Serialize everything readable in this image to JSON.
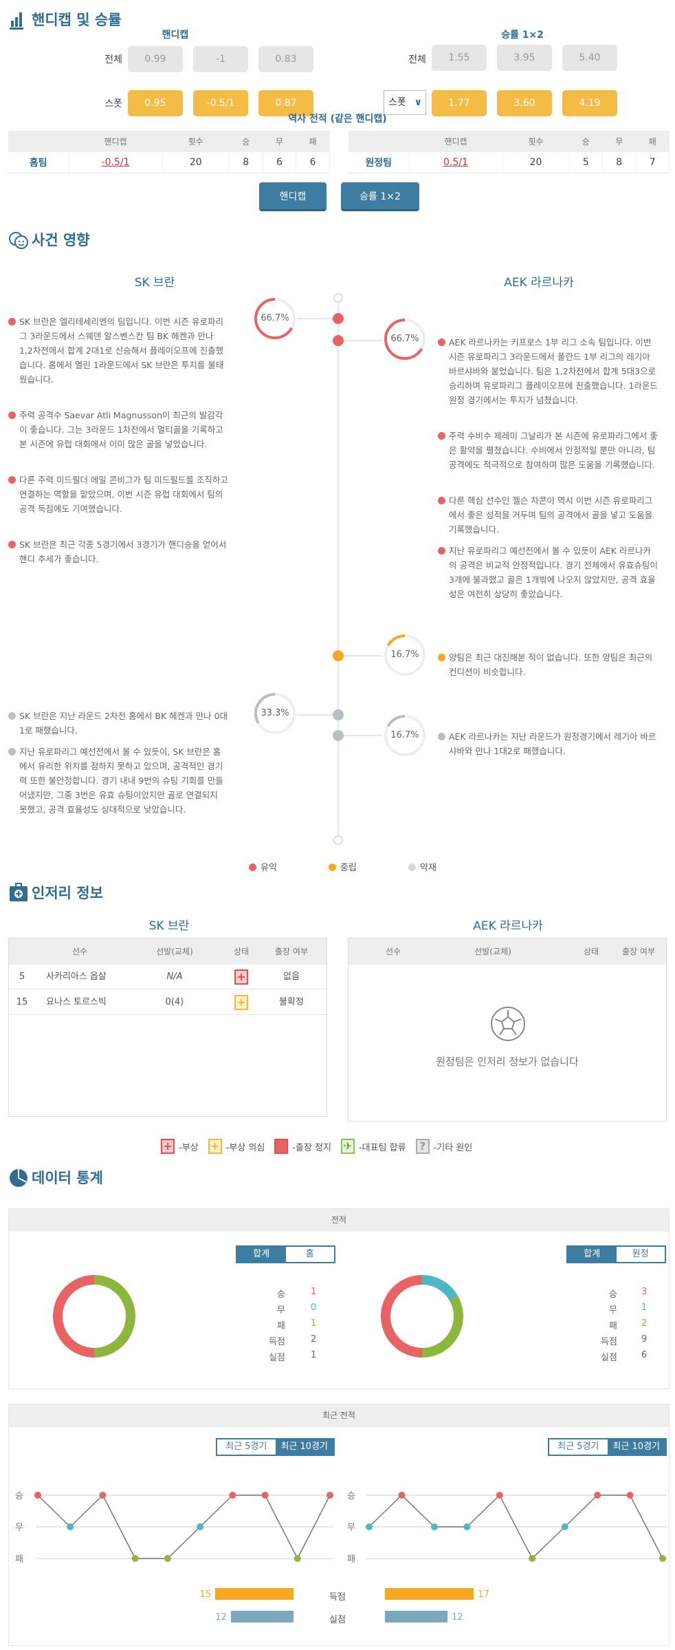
{
  "colors": {
    "primary": "#3e7da2",
    "title": "#2f6d93",
    "positive": "#e86464",
    "neutral": "#f7a823",
    "negative": "#b7c0c1",
    "win": "#e86464",
    "draw": "#4bb8c4",
    "loss": "#8db63c",
    "goals": "#f7a823",
    "conceded": "#7ba7bf",
    "orange_box": "#f5bc45"
  },
  "odds": {
    "title": "핸디캡 및 승률",
    "handicap_header": "핸디캡",
    "winrate_header": "승률 1×2",
    "row_all": "전체",
    "row_spot": "스폿",
    "handicap_all": [
      "0.99",
      "-1",
      "0.83"
    ],
    "handicap_spot": [
      "0.95",
      "-0.5/1",
      "0.87"
    ],
    "winrate_all": [
      "1.55",
      "3.95",
      "5.40"
    ],
    "winrate_select": "스폿",
    "winrate_spot": [
      "1.77",
      "3.60",
      "4.19"
    ],
    "history_title": "역사 전적 (같은 핸디캡)",
    "history_columns": [
      "",
      "핸디캡",
      "횟수",
      "승",
      "무",
      "패"
    ],
    "home_row": [
      "홈팀",
      "-0.5/1",
      "20",
      "8",
      "6",
      "6"
    ],
    "away_row": [
      "원정팀",
      "0.5/1",
      "20",
      "5",
      "8",
      "7"
    ],
    "btn_handicap": "핸디캡",
    "btn_winrate": "승률 1×2"
  },
  "impact": {
    "title": "사건 영향",
    "home_team": "SK 브란",
    "away_team": "AEK 라르나카",
    "groups": [
      {
        "side": "left",
        "type": "positive",
        "percent": "66.7%",
        "value": 66.7,
        "items": [
          "SK 브란은 엘리테세리엔의 팀입니다. 이번 시즌 유로파리그 3라운드에서 스웨덴 알스벤스칸 팀 BK 헤켄과 만나 1,2차전에서 합계 2대1로 신승해서 플레이오프에 진출했습니다. 홈에서 열린 1라운드에서 SK 브란은 투지를 불태웠습니다.",
          "주력 공격수 Saevar Atli Magnusson이 최근의 발감각이 좋습니다. 그는 3라운드 1차전에서 멀티골을 기록하고 본 시즌에 유럽 대회에서 이미 많은 골을 넣었습니다.",
          "다른 주력 미드필더 에밀 콘비그가 팀 미드필드를 조직하고 연결하는 역할을 맡았으며, 이번 시즌 유럽 대회에서 팀의 공격 득점에도 기여했습니다.",
          "SK 브란은 최근 각종 5경기에서 3경기가 핸디승을 얻어서 핸디 추세가 좋습니다."
        ]
      },
      {
        "side": "right",
        "type": "positive",
        "percent": "66.7%",
        "value": 66.7,
        "items": [
          "AEK 라르나카는 키프로스 1부 리그 소속 팀입니다. 이번 시즌 유로파리그 3라운드에서 폴란드 1부 리그의 레기아 바르샤바와 붙었습니다. 팀은 1,2차전에서 합계 5대3으로 승리하며 유로파리그 플레이오프에 진출했습니다. 1라운드 원정 경기에서는 투지가 넘쳤습니다.",
          "주력 수비수 제레미 그날리가 본 시즌에 유로파리그에서 좋은 활약을 펼쳤습니다. 수비에서 안정적일 뿐만 아니라, 팀 공격에도 적극적으로 참여하며 많은 도움을 기록했습니다.",
          "다른 핵심 선수인 젤슨 차콘이 역시 이번 시즌 유로파리그에서 좋은 성적을 거두며 팀의 공격에서 골을 넣고 도움을 기록했습니다.",
          "지난 유로파리그 예선전에서 볼 수 있듯이 AEK 라르나카의 공격은 비교적 안정적입니다. 경기 전체에서 유효슈팅이 3개에 불과했고 골은 1개밖에 나오지 않았지만, 공격 효율성은 여전히 상당히 좋았습니다."
        ]
      },
      {
        "side": "right",
        "type": "neutral",
        "percent": "16.7%",
        "value": 16.7,
        "items": [
          "양팀은 최근 대진해본 적이 없습니다. 또한 양팀은 최근의 컨디션이 비슷합니다."
        ]
      },
      {
        "side": "left",
        "type": "negative",
        "percent": "33.3%",
        "value": 33.3,
        "items": [
          "SK 브란은 지난 라운드 2차전 홈에서 BK 헤켄과 만나 0대1로 패했습니다.",
          "지난 유로파리그 예선전에서 볼 수 있듯이, SK 브란은 홈에서 유리한 위치를 점하지 못하고 있으며, 공격적인 경기력 또한 불안정합니다. 경기 내내 9번의 슈팅 기회를 만들어냈지만, 그중 3번은 유효 슈팅이었지만 골로 연결되지 못했고, 공격 효율성도 상대적으로 낮았습니다."
        ]
      },
      {
        "side": "right",
        "type": "negative",
        "percent": "16.7%",
        "value": 16.7,
        "items": [
          "AEK 라르나카는 지난 라운드가 원정경기에서 레기아 바르샤바와 만나 1대2로 패했습니다."
        ]
      }
    ],
    "legend": [
      "유익",
      "중립",
      "악재"
    ]
  },
  "injury": {
    "title": "인저리 정보",
    "home_team": "SK 브란",
    "away_team": "AEK 라르나카",
    "columns": [
      "선수",
      "선발(교체)",
      "상태",
      "출장 여부"
    ],
    "home_rows": [
      {
        "number": "5",
        "name": "사카리아스 옵살",
        "starts": "N/A",
        "status": "injured",
        "availability": "없음"
      },
      {
        "number": "15",
        "name": "요나스 토르스빅",
        "starts": "0(4)",
        "status": "doubtful",
        "availability": "불확정"
      }
    ],
    "away_empty": "원정팀은 인저리 정보가 없습니다",
    "legend": [
      {
        "icon": "injured",
        "label": "-부상"
      },
      {
        "icon": "doubtful",
        "label": "-부상 의심"
      },
      {
        "icon": "suspended",
        "label": "-출장 정지"
      },
      {
        "icon": "national-team",
        "label": "-대표팀 합류"
      },
      {
        "icon": "other",
        "label": "-기타 원인"
      }
    ]
  },
  "stats": {
    "title": "데이터 통계",
    "record_header": "전적",
    "home_toggle": [
      "합계",
      "홈"
    ],
    "away_toggle": [
      "합계",
      "원정"
    ],
    "labels": [
      "승",
      "무",
      "패",
      "득점",
      "실점"
    ],
    "home": {
      "win": "1",
      "draw": "0",
      "loss": "1",
      "goals": "2",
      "conceded": "1"
    },
    "away": {
      "win": "3",
      "draw": "1",
      "loss": "2",
      "goals": "9",
      "conceded": "6"
    },
    "recent_header": "최근 전적",
    "recent_toggle": [
      "최근 5경기",
      "최근 10경기"
    ],
    "chart_labels": [
      "승",
      "무",
      "패"
    ],
    "home_recent": [
      "W",
      "D",
      "W",
      "L",
      "L",
      "D",
      "W",
      "W",
      "L",
      "W"
    ],
    "away_recent": [
      "D",
      "W",
      "D",
      "D",
      "W",
      "L",
      "D",
      "W",
      "W",
      "L"
    ],
    "goals_label": "득점",
    "conceded_label": "실점",
    "home_goals": "15",
    "home_conceded": "12",
    "away_goals": "17",
    "away_conceded": "12"
  }
}
